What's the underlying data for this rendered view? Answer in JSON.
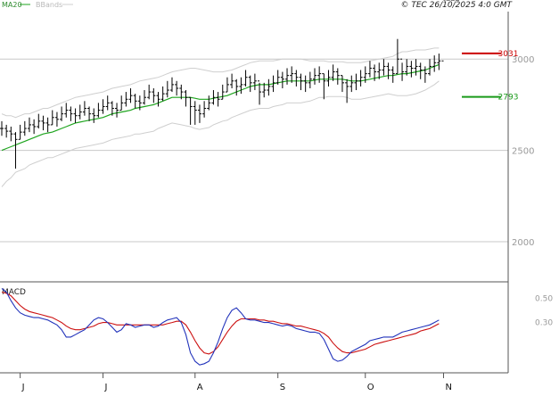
{
  "header": {
    "legend_ma": "MA20",
    "legend_bb": "BBands",
    "copyright": "© TEC 26/10/2025 4:0 GMT"
  },
  "macd_panel": {
    "title": "MACD"
  },
  "colors": {
    "ma": "#1fa51f",
    "bbands": "#cfcfcf",
    "bars": "#000000",
    "resistance": "#cc0000",
    "support": "#1a9a1a",
    "macd_line": "#2233bb",
    "signal_line": "#cc1111",
    "grid": "#c8c8c8"
  },
  "chart_data": [
    {
      "type": "ohlc",
      "title": "",
      "y_ticks": [
        "3000",
        "2500",
        "2000"
      ],
      "y_tick_values": [
        3000,
        2500,
        2000
      ],
      "ylim": [
        1780,
        3260
      ],
      "x_ticks": [
        "J",
        "J",
        "A",
        "S",
        "O",
        "N"
      ],
      "x_tick_index": [
        4,
        22,
        42,
        60,
        79,
        96
      ],
      "x_length": 100,
      "grid": true,
      "close": [
        2620,
        2605,
        2590,
        2560,
        2600,
        2620,
        2640,
        2630,
        2660,
        2650,
        2640,
        2680,
        2670,
        2700,
        2720,
        2700,
        2690,
        2710,
        2730,
        2700,
        2690,
        2720,
        2740,
        2760,
        2730,
        2720,
        2760,
        2780,
        2800,
        2770,
        2760,
        2790,
        2820,
        2800,
        2780,
        2810,
        2830,
        2860,
        2840,
        2820,
        2790,
        2740,
        2720,
        2700,
        2730,
        2760,
        2790,
        2780,
        2820,
        2860,
        2880,
        2850,
        2860,
        2900,
        2870,
        2880,
        2820,
        2830,
        2850,
        2870,
        2900,
        2890,
        2910,
        2920,
        2900,
        2880,
        2870,
        2890,
        2910,
        2920,
        2880,
        2900,
        2930,
        2910,
        2870,
        2850,
        2870,
        2880,
        2900,
        2920,
        2950,
        2930,
        2940,
        2960,
        2940,
        2920,
        3000,
        2930,
        2960,
        2950,
        2960,
        2940,
        2920,
        2960,
        2980,
        2990
      ],
      "high": [
        2660,
        2640,
        2630,
        2600,
        2640,
        2660,
        2680,
        2670,
        2700,
        2690,
        2680,
        2720,
        2710,
        2740,
        2760,
        2740,
        2730,
        2750,
        2770,
        2740,
        2730,
        2760,
        2780,
        2800,
        2770,
        2760,
        2800,
        2820,
        2840,
        2810,
        2800,
        2830,
        2860,
        2840,
        2820,
        2850,
        2880,
        2900,
        2880,
        2860,
        2830,
        2790,
        2770,
        2750,
        2770,
        2800,
        2830,
        2820,
        2860,
        2900,
        2920,
        2890,
        2900,
        2940,
        2910,
        2920,
        2870,
        2870,
        2890,
        2910,
        2940,
        2930,
        2950,
        2960,
        2940,
        2920,
        2910,
        2930,
        2950,
        2960,
        2920,
        2940,
        2970,
        2950,
        2910,
        2890,
        2910,
        2920,
        2940,
        2960,
        2990,
        2970,
        2980,
        3000,
        2980,
        2960,
        3110,
        2980,
        3000,
        2990,
        3000,
        2980,
        2960,
        3000,
        3020,
        3030
      ],
      "low": [
        2580,
        2570,
        2550,
        2400,
        2560,
        2580,
        2600,
        2590,
        2620,
        2610,
        2600,
        2640,
        2630,
        2660,
        2680,
        2660,
        2650,
        2670,
        2690,
        2660,
        2650,
        2680,
        2700,
        2720,
        2690,
        2680,
        2720,
        2740,
        2760,
        2730,
        2720,
        2750,
        2780,
        2760,
        2740,
        2770,
        2790,
        2820,
        2800,
        2780,
        2740,
        2640,
        2640,
        2650,
        2680,
        2720,
        2750,
        2740,
        2780,
        2820,
        2840,
        2800,
        2810,
        2850,
        2820,
        2830,
        2750,
        2790,
        2800,
        2820,
        2860,
        2840,
        2860,
        2870,
        2850,
        2830,
        2820,
        2840,
        2860,
        2870,
        2780,
        2850,
        2880,
        2860,
        2820,
        2760,
        2820,
        2830,
        2850,
        2870,
        2900,
        2880,
        2890,
        2910,
        2890,
        2870,
        2920,
        2880,
        2910,
        2900,
        2910,
        2890,
        2870,
        2910,
        2930,
        2940
      ],
      "ma20": [
        2500,
        2510,
        2520,
        2530,
        2540,
        2550,
        2560,
        2570,
        2580,
        2590,
        2595,
        2600,
        2610,
        2620,
        2630,
        2640,
        2650,
        2655,
        2660,
        2665,
        2670,
        2675,
        2680,
        2690,
        2700,
        2705,
        2710,
        2715,
        2720,
        2730,
        2735,
        2740,
        2745,
        2750,
        2760,
        2770,
        2780,
        2790,
        2790,
        2790,
        2790,
        2790,
        2785,
        2780,
        2780,
        2780,
        2785,
        2790,
        2795,
        2800,
        2810,
        2820,
        2830,
        2840,
        2850,
        2855,
        2860,
        2860,
        2860,
        2865,
        2870,
        2875,
        2880,
        2880,
        2880,
        2880,
        2880,
        2880,
        2885,
        2890,
        2890,
        2890,
        2890,
        2890,
        2890,
        2885,
        2880,
        2880,
        2880,
        2885,
        2890,
        2895,
        2900,
        2905,
        2910,
        2910,
        2915,
        2920,
        2920,
        2925,
        2930,
        2935,
        2940,
        2950,
        2960,
        2970
      ],
      "bb_upper": [
        2700,
        2690,
        2690,
        2680,
        2690,
        2700,
        2700,
        2710,
        2720,
        2730,
        2730,
        2740,
        2750,
        2760,
        2770,
        2780,
        2790,
        2795,
        2800,
        2805,
        2810,
        2815,
        2820,
        2830,
        2840,
        2845,
        2850,
        2855,
        2860,
        2870,
        2880,
        2885,
        2890,
        2895,
        2900,
        2910,
        2920,
        2930,
        2935,
        2940,
        2945,
        2950,
        2950,
        2945,
        2940,
        2935,
        2930,
        2930,
        2930,
        2935,
        2940,
        2950,
        2960,
        2970,
        2980,
        2985,
        2990,
        2990,
        2990,
        2990,
        2995,
        3000,
        3000,
        3000,
        3000,
        3000,
        2995,
        2990,
        2990,
        2990,
        2990,
        2985,
        2985,
        2985,
        2985,
        2980,
        2980,
        2980,
        2980,
        2985,
        2990,
        2995,
        3000,
        3005,
        3010,
        3015,
        3030,
        3040,
        3040,
        3045,
        3050,
        3050,
        3050,
        3055,
        3060,
        3060
      ],
      "bb_lower": [
        2300,
        2330,
        2350,
        2380,
        2390,
        2400,
        2420,
        2430,
        2440,
        2450,
        2460,
        2460,
        2470,
        2480,
        2490,
        2500,
        2510,
        2515,
        2520,
        2525,
        2530,
        2535,
        2540,
        2550,
        2560,
        2565,
        2570,
        2575,
        2580,
        2590,
        2590,
        2595,
        2600,
        2605,
        2620,
        2630,
        2640,
        2650,
        2645,
        2640,
        2635,
        2630,
        2620,
        2615,
        2620,
        2625,
        2640,
        2650,
        2660,
        2665,
        2680,
        2690,
        2700,
        2710,
        2720,
        2725,
        2730,
        2730,
        2730,
        2740,
        2745,
        2750,
        2760,
        2760,
        2760,
        2760,
        2765,
        2770,
        2780,
        2790,
        2790,
        2795,
        2795,
        2795,
        2795,
        2790,
        2780,
        2780,
        2780,
        2785,
        2790,
        2795,
        2800,
        2805,
        2810,
        2805,
        2800,
        2800,
        2800,
        2805,
        2810,
        2820,
        2830,
        2845,
        2860,
        2880
      ],
      "levels": [
        {
          "label": "3031",
          "value": 3031
        },
        {
          "label": "2793",
          "value": 2793
        }
      ]
    },
    {
      "type": "line",
      "title": "MACD",
      "y_ticks": [
        "0.50",
        "0.30"
      ],
      "y_tick_values": [
        0.5,
        0.3
      ],
      "ylim": [
        -0.1,
        0.62
      ],
      "macd": [
        0.58,
        0.55,
        0.48,
        0.42,
        0.38,
        0.36,
        0.35,
        0.34,
        0.34,
        0.33,
        0.32,
        0.3,
        0.28,
        0.24,
        0.18,
        0.18,
        0.2,
        0.22,
        0.24,
        0.28,
        0.32,
        0.34,
        0.33,
        0.3,
        0.26,
        0.22,
        0.24,
        0.29,
        0.28,
        0.26,
        0.27,
        0.28,
        0.28,
        0.26,
        0.27,
        0.3,
        0.32,
        0.33,
        0.34,
        0.3,
        0.2,
        0.05,
        -0.02,
        -0.05,
        -0.04,
        -0.02,
        0.05,
        0.14,
        0.25,
        0.34,
        0.4,
        0.42,
        0.38,
        0.33,
        0.32,
        0.32,
        0.31,
        0.3,
        0.3,
        0.29,
        0.28,
        0.27,
        0.28,
        0.27,
        0.25,
        0.24,
        0.23,
        0.22,
        0.22,
        0.21,
        0.16,
        0.08,
        0.0,
        -0.02,
        -0.01,
        0.02,
        0.06,
        0.08,
        0.1,
        0.12,
        0.15,
        0.16,
        0.17,
        0.18,
        0.18,
        0.18,
        0.2,
        0.22,
        0.23,
        0.24,
        0.25,
        0.26,
        0.27,
        0.28,
        0.3,
        0.32
      ],
      "signal": [
        0.55,
        0.54,
        0.52,
        0.48,
        0.44,
        0.41,
        0.39,
        0.38,
        0.37,
        0.36,
        0.35,
        0.34,
        0.32,
        0.3,
        0.27,
        0.25,
        0.24,
        0.24,
        0.25,
        0.26,
        0.27,
        0.29,
        0.3,
        0.3,
        0.29,
        0.28,
        0.28,
        0.28,
        0.28,
        0.28,
        0.28,
        0.28,
        0.28,
        0.28,
        0.28,
        0.28,
        0.29,
        0.3,
        0.31,
        0.31,
        0.28,
        0.22,
        0.15,
        0.09,
        0.05,
        0.04,
        0.06,
        0.1,
        0.16,
        0.22,
        0.27,
        0.31,
        0.33,
        0.33,
        0.33,
        0.33,
        0.32,
        0.32,
        0.31,
        0.31,
        0.3,
        0.29,
        0.29,
        0.28,
        0.27,
        0.27,
        0.26,
        0.25,
        0.24,
        0.23,
        0.21,
        0.18,
        0.13,
        0.09,
        0.06,
        0.05,
        0.05,
        0.06,
        0.07,
        0.08,
        0.1,
        0.12,
        0.13,
        0.14,
        0.15,
        0.16,
        0.17,
        0.18,
        0.19,
        0.2,
        0.21,
        0.23,
        0.24,
        0.25,
        0.27,
        0.29
      ]
    }
  ]
}
